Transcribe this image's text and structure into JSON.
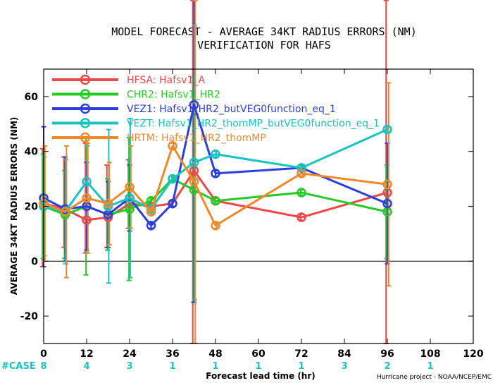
{
  "chart_data": {
    "type": "line",
    "title": "MODEL FORECAST - AVERAGE 34KT RADIUS ERRORS (NM)",
    "subtitle": "VERIFICATION FOR HAFS",
    "xlabel": "Forecast lead time (hr)",
    "ylabel": "AVERAGE 34KT RADIUS ERRORS (NM)",
    "xlim": [
      0,
      120
    ],
    "ylim": [
      -30,
      70
    ],
    "xticks": [
      0,
      12,
      24,
      36,
      48,
      60,
      72,
      84,
      96,
      108,
      120
    ],
    "yticks": [
      -20,
      0,
      20,
      40,
      60
    ],
    "legend_position": "top-left",
    "series": [
      {
        "name": "HFSA: Hafsv1_A",
        "color": "#f04848",
        "x": [
          0,
          6,
          12,
          18,
          24,
          30,
          36,
          42,
          48,
          72,
          96
        ],
        "y": [
          21,
          19,
          15,
          16,
          21,
          20,
          21,
          33,
          22,
          16,
          25
        ],
        "err_low": [
          -2,
          5,
          3,
          5,
          12,
          19,
          20,
          -30,
          21,
          15,
          -30
        ],
        "err_high": [
          41,
          38,
          43,
          35,
          37,
          21,
          22,
          95,
          23,
          17,
          95
        ]
      },
      {
        "name": "CHR2: Hafsv1_HR2",
        "color": "#22cc22",
        "x": [
          0,
          6,
          12,
          18,
          24,
          30,
          36,
          42,
          48,
          72,
          96
        ],
        "y": [
          20,
          17,
          20,
          17,
          19,
          22,
          30,
          26,
          22,
          25,
          18
        ],
        "err_low": [
          1,
          1,
          -5,
          4,
          -7,
          21,
          29,
          -15,
          21,
          24,
          1
        ],
        "err_high": [
          39,
          33,
          45,
          30,
          45,
          23,
          31,
          67,
          23,
          26,
          35
        ]
      },
      {
        "name": "VEZ1: Hafsv1_HR2_butVEG0function_eq_1",
        "color": "#2b3fe0",
        "x": [
          0,
          6,
          12,
          18,
          24,
          30,
          36,
          42,
          48,
          72,
          96
        ],
        "y": [
          23,
          19,
          20,
          17,
          23,
          13,
          21,
          57,
          32,
          34,
          21
        ],
        "err_low": [
          -2,
          0,
          4,
          5,
          11,
          12,
          20,
          -15,
          31,
          33,
          -1
        ],
        "err_high": [
          49,
          38,
          36,
          29,
          35,
          14,
          22,
          129,
          33,
          35,
          43
        ]
      },
      {
        "name": "VEZT: Hafsv1_HR2_thomMP_butVEG0function_eq_1",
        "color": "#19c3c3",
        "x": [
          0,
          6,
          12,
          18,
          24,
          30,
          36,
          42,
          48,
          72,
          96
        ],
        "y": [
          20,
          18,
          29,
          20,
          23,
          19,
          30,
          36,
          39,
          34,
          48
        ],
        "err_low": [
          2,
          -1,
          16,
          -8,
          -6,
          18,
          29,
          -14,
          38,
          33,
          47
        ],
        "err_high": [
          38,
          37,
          42,
          48,
          52,
          20,
          31,
          86,
          40,
          35,
          49
        ]
      },
      {
        "name": "HRTM: Hafsv1_HR2_thomMP",
        "color": "#f08a28",
        "x": [
          0,
          6,
          12,
          18,
          24,
          30,
          36,
          42,
          48,
          72,
          96
        ],
        "y": [
          21,
          18,
          23,
          21,
          27,
          18,
          42,
          29,
          13,
          32,
          28
        ],
        "err_low": [
          0,
          -6,
          3,
          6,
          12,
          17,
          41,
          -30,
          12,
          31,
          -9
        ],
        "err_high": [
          42,
          42,
          43,
          36,
          42,
          19,
          43,
          95,
          14,
          33,
          65
        ]
      }
    ],
    "case_label": "#CASE",
    "case_counts": [
      {
        "x": 0,
        "n": "8"
      },
      {
        "x": 12,
        "n": "4"
      },
      {
        "x": 24,
        "n": "3"
      },
      {
        "x": 36,
        "n": "1"
      },
      {
        "x": 48,
        "n": "1"
      },
      {
        "x": 60,
        "n": "1"
      },
      {
        "x": 72,
        "n": "1"
      },
      {
        "x": 84,
        "n": "3"
      },
      {
        "x": 96,
        "n": "2"
      },
      {
        "x": 108,
        "n": "1"
      }
    ],
    "credit": "Hurricane project - NOAA/NCEP/EMC"
  }
}
